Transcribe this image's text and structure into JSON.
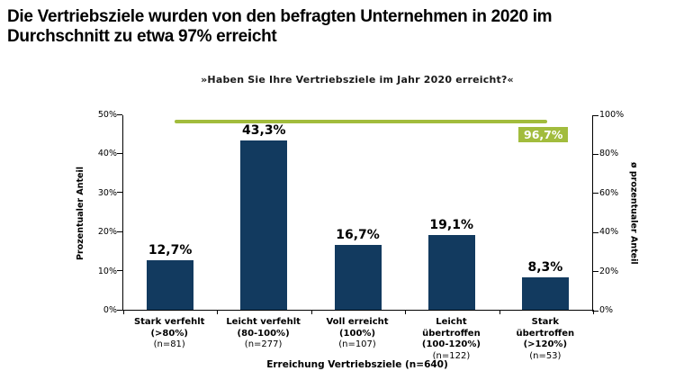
{
  "header": {
    "title": "Die Vertriebsziele wurden von den befragten Unternehmen in 2020 im Durchschnitt zu etwa 97% erreicht"
  },
  "chart_data": {
    "type": "bar",
    "title": "»Haben Sie Ihre Vertriebsziele im Jahr 2020 erreicht?«",
    "categories": [
      {
        "label": "Stark verfehlt",
        "range": "(>80%)",
        "n": "(n=81)"
      },
      {
        "label": "Leicht verfehlt",
        "range": "(80-100%)",
        "n": "(n=277)"
      },
      {
        "label": "Voll erreicht",
        "range": "(100%)",
        "n": "(n=107)"
      },
      {
        "label": "Leicht übertroffen",
        "range": "(100-120%)",
        "n": "(n=122)"
      },
      {
        "label": "Stark übertroffen",
        "range": "(>120%)",
        "n": "(n=53)"
      }
    ],
    "values": [
      12.7,
      43.3,
      16.7,
      19.1,
      8.3
    ],
    "value_labels": [
      "12,7%",
      "43,3%",
      "16,7%",
      "19,1%",
      "8,3%"
    ],
    "xlabel": "Erreichung Vertriebsziele (n=640)",
    "y_left": {
      "label": "Prozentualer Anteil",
      "ticks": [
        "0%",
        "10%",
        "20%",
        "30%",
        "40%",
        "50%"
      ],
      "max": 50
    },
    "y_right": {
      "label": "ø prozentualer Anteil",
      "ticks": [
        "0%",
        "20%",
        "40%",
        "60%",
        "80%",
        "100%"
      ],
      "max": 100
    },
    "target_line": {
      "value": 96.7,
      "label": "96,7%"
    },
    "layout": {
      "grid": false,
      "legend": "none",
      "bar_gap": true
    },
    "colors": {
      "bar": "#123A5F",
      "target": "#A2BC3D",
      "value_label": "#000000"
    }
  }
}
